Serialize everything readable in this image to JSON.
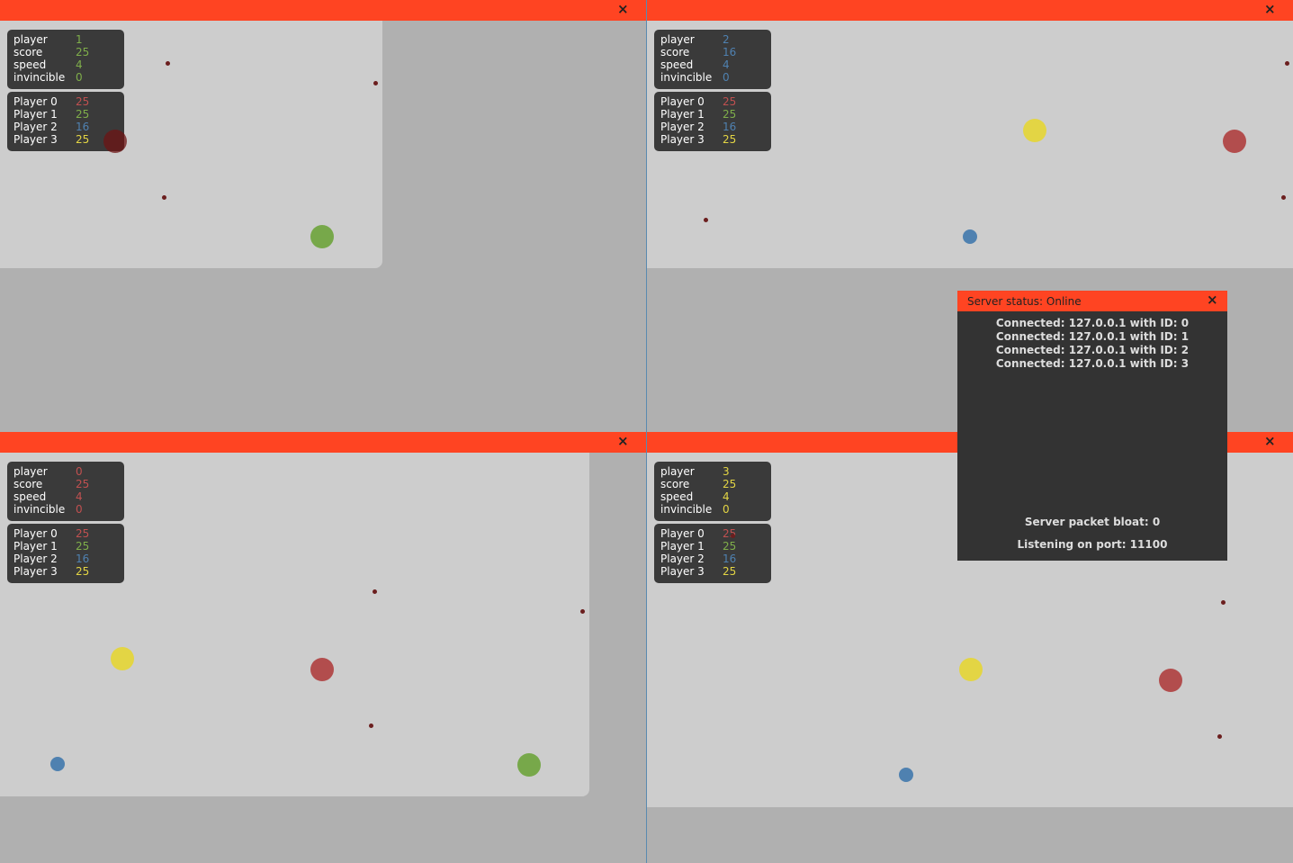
{
  "windows": [
    {
      "close": "×",
      "stats": [
        [
          "player",
          1
        ],
        [
          "score",
          25
        ],
        [
          "speed",
          4
        ],
        [
          "invincible",
          0
        ]
      ],
      "scores": [
        [
          "Player 0",
          25
        ],
        [
          "Player 1",
          25
        ],
        [
          "Player 2",
          16
        ],
        [
          "Player 3",
          25
        ]
      ]
    },
    {
      "close": "×",
      "stats": [
        [
          "player",
          2
        ],
        [
          "score",
          16
        ],
        [
          "speed",
          4
        ],
        [
          "invincible",
          0
        ]
      ],
      "scores": [
        [
          "Player 0",
          25
        ],
        [
          "Player 1",
          25
        ],
        [
          "Player 2",
          16
        ],
        [
          "Player 3",
          25
        ]
      ]
    },
    {
      "close": "×",
      "stats": [
        [
          "player",
          0
        ],
        [
          "score",
          25
        ],
        [
          "speed",
          4
        ],
        [
          "invincible",
          0
        ]
      ],
      "scores": [
        [
          "Player 0",
          25
        ],
        [
          "Player 1",
          25
        ],
        [
          "Player 2",
          16
        ],
        [
          "Player 3",
          25
        ]
      ]
    },
    {
      "close": "×",
      "stats": [
        [
          "player",
          3
        ],
        [
          "score",
          25
        ],
        [
          "speed",
          4
        ],
        [
          "invincible",
          0
        ]
      ],
      "scores": [
        [
          "Player 0",
          25
        ],
        [
          "Player 1",
          25
        ],
        [
          "Player 2",
          16
        ],
        [
          "Player 3",
          25
        ]
      ]
    }
  ],
  "server": {
    "title": "Server status: Online",
    "close": "×",
    "connections": [
      "Connected: 127.0.0.1 with ID: 0",
      "Connected: 127.0.0.1 with ID: 1",
      "Connected: 127.0.0.1 with ID: 2",
      "Connected: 127.0.0.1 with ID: 3"
    ],
    "bloat": "Server packet bloat: 0",
    "port": "Listening on port: 11100"
  }
}
